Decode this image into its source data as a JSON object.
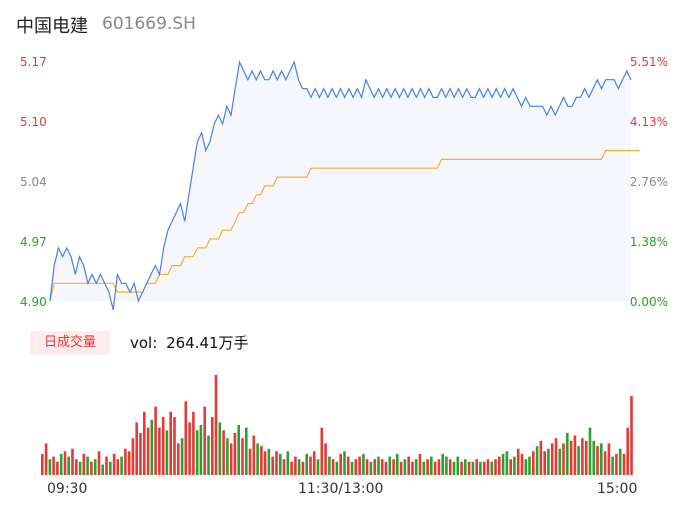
{
  "header": {
    "name": "中国电建",
    "code": "601669.SH"
  },
  "volume_tab": {
    "label": "日成交量",
    "vol_prefix": "vol:",
    "vol_value": "264.41万手"
  },
  "colors": {
    "price_line": "#4a80e0",
    "avg_line": "#f2b233",
    "up": "#e53935",
    "down": "#2ca02c",
    "area": "#f5f7fd"
  },
  "chart_data": [
    {
      "type": "line",
      "y_left_ticks": [
        "5.17",
        "5.10",
        "5.04",
        "4.97",
        "4.90"
      ],
      "y_right_ticks": [
        "5.51%",
        "4.13%",
        "2.76%",
        "1.38%",
        "0.00%"
      ],
      "ylim": [
        4.9,
        5.17
      ],
      "x_ticks": [
        "09:30",
        "11:30/13:00",
        "15:00"
      ],
      "series": [
        {
          "values": [
            4.9,
            4.94,
            4.96,
            4.95,
            4.96,
            4.95,
            4.93,
            4.95,
            4.94,
            4.92,
            4.93,
            4.92,
            4.93,
            4.92,
            4.91,
            4.89,
            4.93,
            4.92,
            4.92,
            4.91,
            4.92,
            4.9,
            4.91,
            4.92,
            4.93,
            4.94,
            4.93,
            4.96,
            4.98,
            4.99,
            5.0,
            5.01,
            4.99,
            5.02,
            5.05,
            5.08,
            5.09,
            5.07,
            5.08,
            5.1,
            5.11,
            5.1,
            5.12,
            5.11,
            5.14,
            5.17,
            5.16,
            5.15,
            5.16,
            5.15,
            5.16,
            5.15,
            5.15,
            5.16,
            5.15,
            5.16,
            5.15,
            5.16,
            5.17,
            5.15,
            5.14,
            5.14,
            5.13,
            5.14,
            5.13,
            5.14,
            5.13,
            5.14,
            5.13,
            5.14,
            5.13,
            5.14,
            5.13,
            5.14,
            5.13,
            5.15,
            5.14,
            5.13,
            5.14,
            5.13,
            5.14,
            5.13,
            5.14,
            5.13,
            5.14,
            5.13,
            5.14,
            5.13,
            5.14,
            5.13,
            5.14,
            5.13,
            5.13,
            5.14,
            5.13,
            5.14,
            5.13,
            5.14,
            5.13,
            5.14,
            5.13,
            5.13,
            5.14,
            5.13,
            5.14,
            5.13,
            5.14,
            5.13,
            5.14,
            5.13,
            5.14,
            5.13,
            5.12,
            5.13,
            5.12,
            5.12,
            5.12,
            5.12,
            5.11,
            5.12,
            5.11,
            5.12,
            5.13,
            5.12,
            5.12,
            5.13,
            5.13,
            5.14,
            5.13,
            5.14,
            5.15,
            5.14,
            5.15,
            5.15,
            5.15,
            5.14,
            5.15,
            5.16,
            5.15
          ]
        },
        {
          "values": [
            4.9,
            4.92,
            4.92,
            4.92,
            4.92,
            4.92,
            4.92,
            4.92,
            4.92,
            4.92,
            4.92,
            4.92,
            4.92,
            4.92,
            4.92,
            4.92,
            4.91,
            4.91,
            4.91,
            4.91,
            4.91,
            4.91,
            4.91,
            4.92,
            4.92,
            4.92,
            4.93,
            4.93,
            4.93,
            4.94,
            4.94,
            4.94,
            4.95,
            4.95,
            4.95,
            4.96,
            4.96,
            4.96,
            4.97,
            4.97,
            4.97,
            4.98,
            4.98,
            4.98,
            4.99,
            5.0,
            5.0,
            5.01,
            5.01,
            5.02,
            5.02,
            5.03,
            5.03,
            5.03,
            5.04,
            5.04,
            5.04,
            5.04,
            5.04,
            5.04,
            5.04,
            5.04,
            5.05,
            5.05,
            5.05,
            5.05,
            5.05,
            5.05,
            5.05,
            5.05,
            5.05,
            5.05,
            5.05,
            5.05,
            5.05,
            5.05,
            5.05,
            5.05,
            5.05,
            5.05,
            5.05,
            5.05,
            5.05,
            5.05,
            5.05,
            5.05,
            5.05,
            5.05,
            5.05,
            5.05,
            5.05,
            5.05,
            5.05,
            5.06,
            5.06,
            5.06,
            5.06,
            5.06,
            5.06,
            5.06,
            5.06,
            5.06,
            5.06,
            5.06,
            5.06,
            5.06,
            5.06,
            5.06,
            5.06,
            5.06,
            5.06,
            5.06,
            5.06,
            5.06,
            5.06,
            5.06,
            5.06,
            5.06,
            5.06,
            5.06,
            5.06,
            5.06,
            5.06,
            5.06,
            5.06,
            5.06,
            5.06,
            5.06,
            5.06,
            5.06,
            5.06,
            5.06,
            5.07,
            5.07,
            5.07,
            5.07,
            5.07,
            5.07,
            5.07,
            5.07,
            5.07
          ]
        }
      ]
    },
    {
      "type": "bar",
      "values": [
        8,
        12,
        6,
        7,
        5,
        8,
        9,
        7,
        10,
        6,
        5,
        8,
        7,
        5,
        6,
        9,
        4,
        7,
        5,
        8,
        6,
        7,
        10,
        9,
        14,
        20,
        16,
        24,
        18,
        21,
        26,
        18,
        22,
        17,
        24,
        22,
        12,
        14,
        28,
        20,
        24,
        17,
        19,
        26,
        15,
        22,
        38,
        20,
        17,
        14,
        12,
        16,
        19,
        14,
        18,
        10,
        15,
        12,
        11,
        9,
        10,
        7,
        9,
        8,
        6,
        9,
        5,
        7,
        6,
        5,
        8,
        7,
        9,
        6,
        18,
        12,
        7,
        6,
        5,
        8,
        9,
        7,
        5,
        6,
        7,
        8,
        6,
        5,
        6,
        7,
        6,
        5,
        7,
        6,
        8,
        5,
        6,
        7,
        5,
        6,
        8,
        5,
        6,
        7,
        5,
        6,
        8,
        7,
        6,
        5,
        7,
        5,
        6,
        5,
        5,
        6,
        5,
        5,
        6,
        5,
        6,
        7,
        8,
        9,
        6,
        7,
        10,
        8,
        6,
        7,
        9,
        11,
        13,
        9,
        10,
        12,
        14,
        10,
        12,
        16,
        13,
        15,
        11,
        14,
        13,
        18,
        13,
        11,
        12,
        9,
        12,
        7,
        8,
        10,
        8,
        18,
        30
      ],
      "up": [
        1,
        1,
        0,
        1,
        1,
        0,
        1,
        0,
        1,
        1,
        0,
        1,
        0,
        1,
        0,
        1,
        0,
        1,
        0,
        1,
        1,
        0,
        1,
        1,
        1,
        1,
        1,
        1,
        1,
        0,
        1,
        1,
        1,
        0,
        1,
        1,
        1,
        0,
        1,
        1,
        1,
        0,
        0,
        1,
        0,
        1,
        1,
        0,
        1,
        0,
        1,
        1,
        0,
        1,
        0,
        1,
        1,
        0,
        1,
        1,
        0,
        1,
        1,
        0,
        1,
        0,
        1,
        1,
        0,
        1,
        0,
        1,
        1,
        0,
        1,
        1,
        0,
        1,
        0,
        1,
        0,
        1,
        0,
        1,
        1,
        0,
        1,
        0,
        1,
        0,
        1,
        1,
        0,
        1,
        0,
        1,
        0,
        1,
        1,
        0,
        1,
        0,
        1,
        0,
        1,
        1,
        0,
        0,
        1,
        0,
        0,
        1,
        0,
        1,
        0,
        1,
        0,
        1,
        1,
        0,
        1,
        1,
        0,
        0,
        1,
        0,
        1,
        1,
        0,
        0,
        1,
        0,
        1,
        1,
        0,
        1,
        1,
        0,
        1,
        0,
        1,
        1,
        0,
        1,
        1,
        0,
        0,
        1,
        0,
        1,
        1,
        0,
        1,
        0,
        1,
        1,
        1
      ]
    }
  ]
}
